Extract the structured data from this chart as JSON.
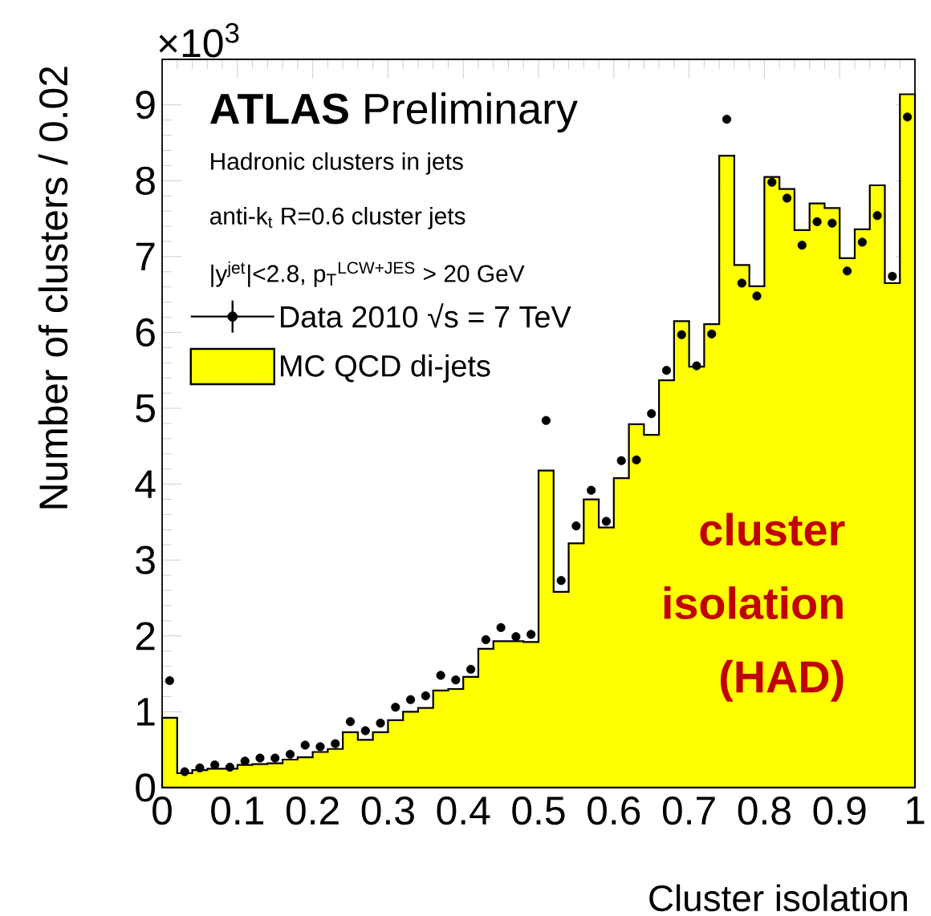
{
  "chart_data": {
    "type": "histogram",
    "title": "**ATLAS** Preliminary",
    "xlabel": "Cluster isolation",
    "ylabel": "Number of clusters / 0.02",
    "annotations": [
      "×10$^{3}$",
      "Hadronic clusters in jets",
      "anti-k$_{t}$ R=0.6 cluster jets",
      "|y$^{jet}$|<2.8, p$_{T}$$^{LCW+JES}$ > 20 GeV",
      "cluster isolation (HAD)"
    ],
    "bins": [
      0,
      0.02,
      0.04,
      0.06,
      0.08,
      0.1,
      0.12,
      0.14,
      0.16,
      0.18,
      0.2,
      0.22,
      0.24,
      0.26,
      0.28,
      0.3,
      0.32,
      0.34,
      0.36,
      0.38,
      0.4,
      0.42,
      0.44,
      0.46,
      0.48,
      0.5,
      0.52,
      0.54,
      0.56,
      0.58,
      0.6,
      0.62,
      0.64,
      0.66,
      0.68,
      0.7,
      0.72,
      0.74,
      0.76,
      0.78,
      0.8,
      0.82,
      0.84,
      0.86,
      0.88,
      0.9,
      0.92,
      0.94,
      0.96,
      0.98,
      1
    ],
    "series": [
      {
        "type": "scatter",
        "name": "Data 2010 √s = 7 TeV",
        "color": "#000000",
        "x": [
          0.01,
          0.03,
          0.05,
          0.07,
          0.09,
          0.11,
          0.13,
          0.15,
          0.17,
          0.19,
          0.21,
          0.23,
          0.25,
          0.27,
          0.29,
          0.31,
          0.33,
          0.35,
          0.37,
          0.39,
          0.41,
          0.43,
          0.45,
          0.47,
          0.49,
          0.51,
          0.53,
          0.55,
          0.57,
          0.59,
          0.61,
          0.63,
          0.65,
          0.67,
          0.69,
          0.71,
          0.73,
          0.75,
          0.77,
          0.79,
          0.81,
          0.83,
          0.85,
          0.87,
          0.89,
          0.91,
          0.93,
          0.95,
          0.97,
          0.99
        ],
        "values": [
          1.41,
          0.21,
          0.26,
          0.3,
          0.27,
          0.35,
          0.39,
          0.39,
          0.44,
          0.56,
          0.54,
          0.58,
          0.87,
          0.75,
          0.85,
          1.06,
          1.16,
          1.21,
          1.48,
          1.42,
          1.56,
          1.95,
          2.11,
          1.99,
          2.02,
          4.84,
          2.73,
          3.45,
          3.92,
          3.51,
          4.31,
          4.32,
          4.93,
          5.5,
          5.97,
          5.56,
          5.98,
          8.81,
          6.65,
          6.48,
          7.98,
          7.77,
          7.15,
          7.46,
          7.44,
          6.81,
          7.19,
          7.54,
          6.74,
          8.84
        ]
      },
      {
        "name": "MC QCD di-jets",
        "color": "#ffff00",
        "values": [
          0.92,
          0.19,
          0.23,
          0.25,
          0.25,
          0.3,
          0.31,
          0.32,
          0.37,
          0.4,
          0.47,
          0.51,
          0.73,
          0.63,
          0.73,
          0.89,
          1.0,
          1.05,
          1.28,
          1.3,
          1.46,
          1.83,
          1.93,
          1.93,
          1.92,
          4.18,
          2.58,
          3.22,
          3.8,
          3.43,
          4.08,
          4.79,
          4.65,
          5.37,
          6.15,
          5.55,
          6.11,
          8.33,
          6.89,
          6.61,
          8.05,
          7.89,
          7.35,
          7.7,
          7.64,
          6.98,
          7.36,
          7.94,
          6.65,
          9.14
        ]
      }
    ],
    "xlim": [
      0,
      1
    ],
    "ylim": [
      0,
      9.6
    ],
    "xticks": [
      0,
      0.1,
      0.2,
      0.3,
      0.4,
      0.5,
      0.6,
      0.7,
      0.8,
      0.9,
      1
    ],
    "yticks": [
      0,
      1,
      2,
      3,
      4,
      5,
      6,
      7,
      8,
      9
    ],
    "marker": "circle",
    "legend": "top left"
  }
}
